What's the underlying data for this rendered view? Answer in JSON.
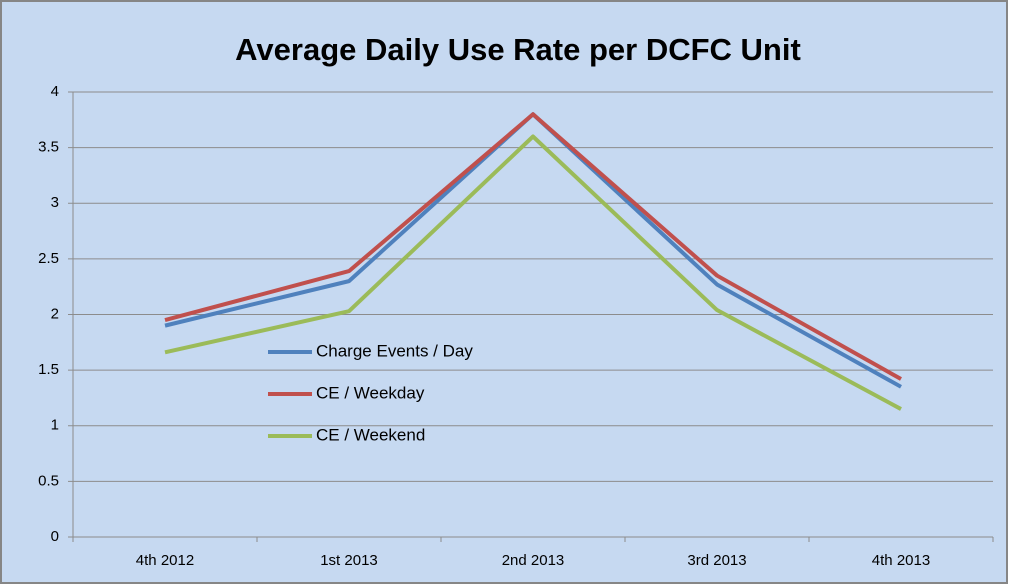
{
  "chart_data": {
    "type": "line",
    "title": "Average Daily Use Rate per DCFC Unit",
    "categories": [
      "4th 2012",
      "1st 2013",
      "2nd 2013",
      "3rd 2013",
      "4th 2013"
    ],
    "series": [
      {
        "name": "Charge Events / Day",
        "color": "#4f81bd",
        "values": [
          1.9,
          2.3,
          3.8,
          2.27,
          1.35
        ]
      },
      {
        "name": "CE / Weekday",
        "color": "#c0504d",
        "values": [
          1.95,
          2.39,
          3.8,
          2.35,
          1.42
        ]
      },
      {
        "name": "CE / Weekend",
        "color": "#9bbb59",
        "values": [
          1.66,
          2.03,
          3.6,
          2.04,
          1.15
        ]
      }
    ],
    "ylim": [
      0,
      4
    ],
    "yticks": [
      0,
      0.5,
      1,
      1.5,
      2,
      2.5,
      3,
      3.5,
      4
    ],
    "grid": true,
    "legend": "inside-left"
  }
}
